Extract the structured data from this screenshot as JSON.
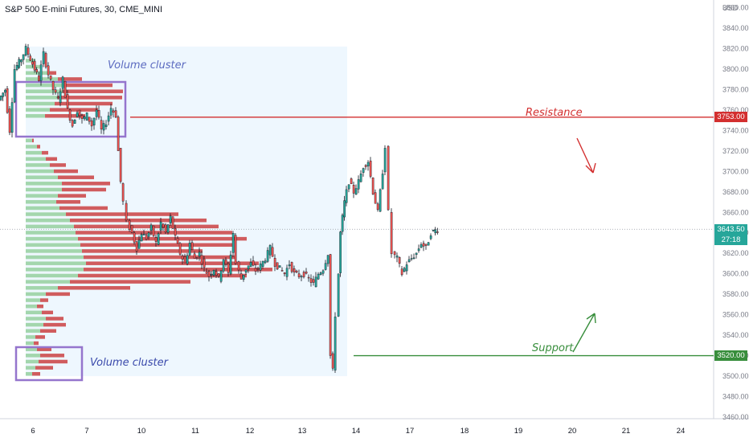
{
  "header": {
    "title": "S&P 500 E-mini Futures, 30, CME_MINI",
    "currency": "USD"
  },
  "colors": {
    "up": "#26a69a",
    "down": "#ef5350",
    "resistance": "#d32f2f",
    "support": "#388e3c",
    "cluster_box": "#9575cd",
    "profile_area": "#e3f2fd",
    "vp_green": "#66bb6a",
    "vp_red": "#c62828"
  },
  "chart_data": {
    "type": "candlestick",
    "instrument": "S&P 500 E-mini Futures",
    "timeframe": "30",
    "exchange": "CME_MINI",
    "x_ticks": [
      "6",
      "7",
      "10",
      "11",
      "12",
      "13",
      "14",
      "17",
      "18",
      "19",
      "20",
      "21",
      "24"
    ],
    "y_ticks": [
      3460,
      3480,
      3500,
      3520,
      3540,
      3560,
      3580,
      3600,
      3620,
      3640,
      3660,
      3680,
      3700,
      3720,
      3740,
      3760,
      3780,
      3800,
      3820,
      3840,
      3860
    ],
    "ylim": [
      3455,
      3868
    ],
    "last_price": "3643.50",
    "countdown": "27:18",
    "resistance": {
      "label": "Resistance",
      "value": "3753.00"
    },
    "support": {
      "label": "Support",
      "value": "3520.00"
    },
    "clusters": [
      "Volume cluster",
      "Volume cluster"
    ],
    "price_path": [
      [
        0,
        3770
      ],
      [
        8,
        3780
      ],
      [
        14,
        3740
      ],
      [
        20,
        3800
      ],
      [
        28,
        3810
      ],
      [
        34,
        3820
      ],
      [
        42,
        3805
      ],
      [
        50,
        3790
      ],
      [
        56,
        3815
      ],
      [
        62,
        3795
      ],
      [
        68,
        3780
      ],
      [
        74,
        3770
      ],
      [
        80,
        3790
      ],
      [
        86,
        3760
      ],
      [
        92,
        3745
      ],
      [
        98,
        3760
      ],
      [
        104,
        3750
      ],
      [
        110,
        3755
      ],
      [
        116,
        3745
      ],
      [
        122,
        3760
      ],
      [
        128,
        3740
      ],
      [
        134,
        3748
      ],
      [
        140,
        3762
      ],
      [
        146,
        3755
      ],
      [
        149,
        3720
      ],
      [
        152,
        3690
      ],
      [
        156,
        3670
      ],
      [
        160,
        3650
      ],
      [
        166,
        3640
      ],
      [
        172,
        3625
      ],
      [
        178,
        3640
      ],
      [
        184,
        3635
      ],
      [
        190,
        3645
      ],
      [
        196,
        3630
      ],
      [
        202,
        3650
      ],
      [
        208,
        3640
      ],
      [
        214,
        3655
      ],
      [
        220,
        3635
      ],
      [
        226,
        3620
      ],
      [
        232,
        3610
      ],
      [
        238,
        3630
      ],
      [
        244,
        3615
      ],
      [
        250,
        3620
      ],
      [
        256,
        3605
      ],
      [
        262,
        3598
      ],
      [
        268,
        3605
      ],
      [
        274,
        3595
      ],
      [
        280,
        3615
      ],
      [
        286,
        3600
      ],
      [
        292,
        3640
      ],
      [
        296,
        3610
      ],
      [
        302,
        3595
      ],
      [
        308,
        3605
      ],
      [
        314,
        3610
      ],
      [
        320,
        3603
      ],
      [
        326,
        3608
      ],
      [
        332,
        3615
      ],
      [
        338,
        3625
      ],
      [
        344,
        3610
      ],
      [
        350,
        3605
      ],
      [
        356,
        3600
      ],
      [
        362,
        3610
      ],
      [
        368,
        3600
      ],
      [
        374,
        3598
      ],
      [
        380,
        3600
      ],
      [
        386,
        3595
      ],
      [
        392,
        3590
      ],
      [
        398,
        3600
      ],
      [
        404,
        3605
      ],
      [
        410,
        3620
      ],
      [
        413,
        3520
      ],
      [
        416,
        3505
      ],
      [
        420,
        3560
      ],
      [
        425,
        3640
      ],
      [
        430,
        3670
      ],
      [
        436,
        3690
      ],
      [
        442,
        3680
      ],
      [
        448,
        3690
      ],
      [
        454,
        3705
      ],
      [
        460,
        3710
      ],
      [
        466,
        3680
      ],
      [
        472,
        3660
      ],
      [
        478,
        3700
      ],
      [
        482,
        3725
      ],
      [
        486,
        3660
      ],
      [
        490,
        3620
      ],
      [
        496,
        3615
      ],
      [
        502,
        3600
      ],
      [
        508,
        3610
      ],
      [
        514,
        3615
      ],
      [
        520,
        3620
      ],
      [
        526,
        3630
      ],
      [
        532,
        3625
      ],
      [
        538,
        3640
      ],
      [
        546,
        3643.5
      ]
    ],
    "volume_profile_upper": [
      [
        3808,
        12,
        0
      ],
      [
        3802,
        18,
        0
      ],
      [
        3796,
        30,
        8
      ],
      [
        3790,
        40,
        30
      ],
      [
        3784,
        48,
        60
      ],
      [
        3778,
        46,
        75
      ],
      [
        3772,
        40,
        80
      ],
      [
        3766,
        36,
        72
      ],
      [
        3760,
        30,
        60
      ],
      [
        3754,
        24,
        50
      ]
    ],
    "volume_profile_lower": [
      [
        3730,
        8,
        2
      ],
      [
        3724,
        14,
        4
      ],
      [
        3718,
        20,
        8
      ],
      [
        3712,
        25,
        14
      ],
      [
        3706,
        30,
        20
      ],
      [
        3700,
        35,
        30
      ],
      [
        3694,
        40,
        45
      ],
      [
        3688,
        45,
        60
      ],
      [
        3682,
        45,
        55
      ],
      [
        3676,
        40,
        35
      ],
      [
        3670,
        38,
        30
      ],
      [
        3664,
        42,
        60
      ],
      [
        3658,
        50,
        140
      ],
      [
        3652,
        55,
        170
      ],
      [
        3646,
        60,
        180
      ],
      [
        3640,
        62,
        195
      ],
      [
        3634,
        65,
        210
      ],
      [
        3628,
        68,
        190
      ],
      [
        3622,
        70,
        150
      ],
      [
        3616,
        72,
        190
      ],
      [
        3610,
        75,
        215
      ],
      [
        3604,
        72,
        235
      ],
      [
        3598,
        65,
        210
      ],
      [
        3592,
        55,
        150
      ],
      [
        3586,
        40,
        90
      ],
      [
        3580,
        25,
        30
      ],
      [
        3574,
        18,
        10
      ],
      [
        3568,
        14,
        8
      ],
      [
        3562,
        20,
        14
      ],
      [
        3556,
        25,
        22
      ],
      [
        3550,
        22,
        28
      ],
      [
        3544,
        18,
        20
      ],
      [
        3538,
        12,
        12
      ],
      [
        3532,
        10,
        6
      ],
      [
        3526,
        14,
        18
      ],
      [
        3520,
        18,
        30
      ],
      [
        3514,
        16,
        36
      ],
      [
        3508,
        12,
        22
      ],
      [
        3502,
        8,
        10
      ]
    ]
  }
}
